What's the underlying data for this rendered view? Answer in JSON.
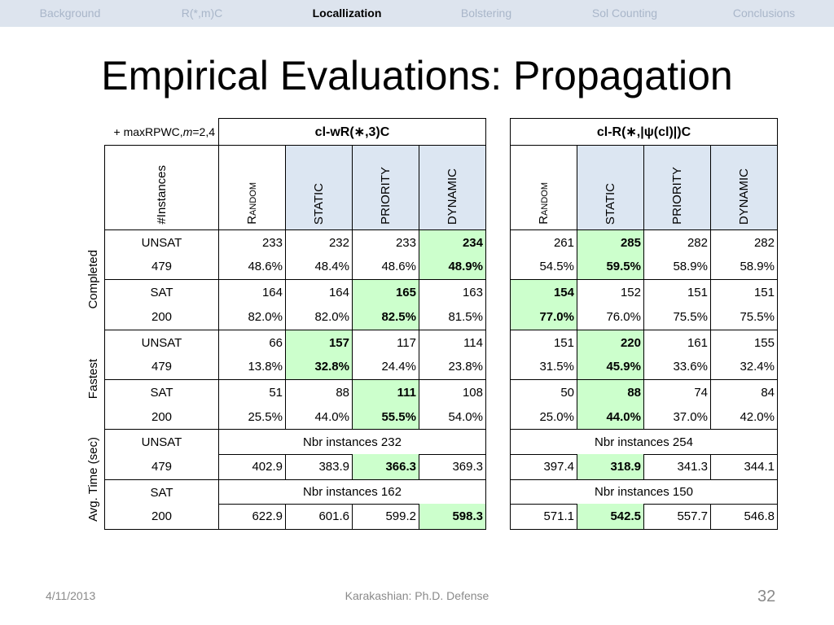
{
  "nav": {
    "items": [
      "Background",
      "R(*,m)C",
      "Locallization",
      "Bolstering",
      "Sol Counting",
      "Conclusions"
    ],
    "active": 2
  },
  "title": "Empirical Evaluations: Propagation",
  "table": {
    "corner": {
      "prefix": "+ maxRPWC, ",
      "var": "m",
      "suffix": "=2,4"
    },
    "row_header": "#Instances",
    "groups": [
      {
        "title": "cl-wR(∗,3)C",
        "columns": [
          {
            "text": "Random",
            "shaded": false,
            "smallcaps": true
          },
          {
            "text": "STATIC",
            "shaded": true,
            "smallcaps": false
          },
          {
            "text": "PRIORITY",
            "shaded": true,
            "smallcaps": false
          },
          {
            "text": "DYNAMIC",
            "shaded": true,
            "smallcaps": false
          }
        ]
      },
      {
        "title": "cl-R(∗,|ψ(cl)|)C",
        "columns": [
          {
            "text": "Random",
            "shaded": false,
            "smallcaps": true
          },
          {
            "text": "STATIC",
            "shaded": true,
            "smallcaps": false
          },
          {
            "text": "PRIORITY",
            "shaded": true,
            "smallcaps": false
          },
          {
            "text": "DYNAMIC",
            "shaded": true,
            "smallcaps": false
          }
        ]
      }
    ],
    "sections": [
      {
        "label": "Completed",
        "rows": [
          {
            "label": "UNSAT",
            "cells": [
              [
                "233",
                "232",
                "233",
                "234"
              ],
              [
                "261",
                "285",
                "282",
                "282"
              ]
            ],
            "best": [
              3,
              1
            ]
          },
          {
            "label": "479",
            "cells": [
              [
                "48.6%",
                "48.4%",
                "48.6%",
                "48.9%"
              ],
              [
                "54.5%",
                "59.5%",
                "58.9%",
                "58.9%"
              ]
            ],
            "best": [
              3,
              1
            ]
          },
          {
            "label": "SAT",
            "cells": [
              [
                "164",
                "164",
                "165",
                "163"
              ],
              [
                "154",
                "152",
                "151",
                "151"
              ]
            ],
            "best": [
              2,
              0
            ]
          },
          {
            "label": "200",
            "cells": [
              [
                "82.0%",
                "82.0%",
                "82.5%",
                "81.5%"
              ],
              [
                "77.0%",
                "76.0%",
                "75.5%",
                "75.5%"
              ]
            ],
            "best": [
              2,
              0
            ]
          }
        ]
      },
      {
        "label": "Fastest",
        "rows": [
          {
            "label": "UNSAT",
            "cells": [
              [
                "66",
                "157",
                "117",
                "114"
              ],
              [
                "151",
                "220",
                "161",
                "155"
              ]
            ],
            "best": [
              1,
              1
            ]
          },
          {
            "label": "479",
            "cells": [
              [
                "13.8%",
                "32.8%",
                "24.4%",
                "23.8%"
              ],
              [
                "31.5%",
                "45.9%",
                "33.6%",
                "32.4%"
              ]
            ],
            "best": [
              1,
              1
            ]
          },
          {
            "label": "SAT",
            "cells": [
              [
                "51",
                "88",
                "111",
                "108"
              ],
              [
                "50",
                "88",
                "74",
                "84"
              ]
            ],
            "best": [
              2,
              1
            ]
          },
          {
            "label": "200",
            "cells": [
              [
                "25.5%",
                "44.0%",
                "55.5%",
                "54.0%"
              ],
              [
                "25.0%",
                "44.0%",
                "37.0%",
                "42.0%"
              ]
            ],
            "best": [
              2,
              1
            ]
          }
        ]
      },
      {
        "label": "Avg. Time (sec)",
        "rows": [
          {
            "label": "UNSAT",
            "spans": [
              "Nbr instances 232",
              "Nbr instances 254"
            ]
          },
          {
            "label": "479",
            "cells": [
              [
                "402.9",
                "383.9",
                "366.3",
                "369.3"
              ],
              [
                "397.4",
                "318.9",
                "341.3",
                "344.1"
              ]
            ],
            "best": [
              2,
              1
            ]
          },
          {
            "label": "SAT",
            "spans": [
              "Nbr instances 162",
              "Nbr instances 150"
            ]
          },
          {
            "label": "200",
            "cells": [
              [
                "622.9",
                "601.6",
                "599.2",
                "598.3"
              ],
              [
                "571.1",
                "542.5",
                "557.7",
                "546.8"
              ]
            ],
            "best": [
              3,
              1
            ]
          }
        ]
      }
    ]
  },
  "footer": {
    "date": "4/11/2013",
    "center": "Karakashian: Ph.D. Defense",
    "page": "32"
  }
}
